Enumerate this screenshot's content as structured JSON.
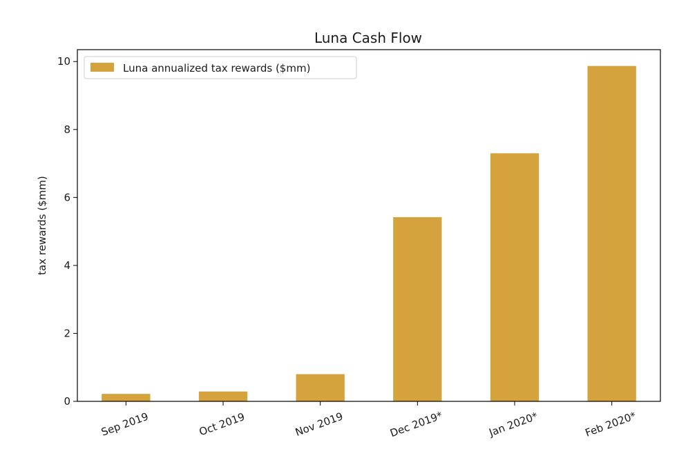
{
  "chart_data": {
    "type": "bar",
    "title": "Luna Cash Flow",
    "xlabel": "",
    "ylabel": "tax rewards ($mm)",
    "categories": [
      "Sep 2019",
      "Oct 2019",
      "Nov 2019",
      "Dec 2019*",
      "Jan 2020*",
      "Feb 2020*"
    ],
    "series": [
      {
        "name": "Luna annualized tax rewards ($mm)",
        "values": [
          0.22,
          0.29,
          0.8,
          5.42,
          7.3,
          9.87
        ],
        "color": "#d4a33e"
      }
    ],
    "ylim": [
      0,
      10.35
    ],
    "yticks": [
      0,
      2,
      4,
      6,
      8,
      10
    ],
    "grid": false,
    "legend_position": "top-left"
  }
}
